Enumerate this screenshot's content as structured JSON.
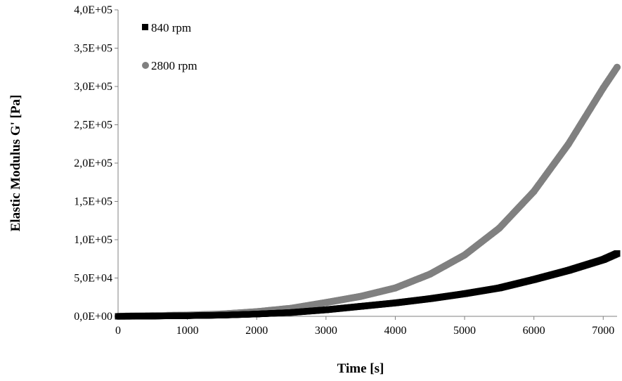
{
  "chart_data": {
    "type": "scatter",
    "xlabel": "Time [s]",
    "ylabel": "Elastic Modulus G' [Pa]",
    "xlim": [
      0,
      7200
    ],
    "ylim": [
      0,
      400000
    ],
    "x_ticks": [
      0,
      1000,
      2000,
      3000,
      4000,
      5000,
      6000,
      7000
    ],
    "x_tick_labels": [
      "0",
      "1000",
      "2000",
      "3000",
      "4000",
      "5000",
      "6000",
      "7000"
    ],
    "y_ticks": [
      0,
      50000,
      100000,
      150000,
      200000,
      250000,
      300000,
      350000,
      400000
    ],
    "y_tick_labels": [
      "0,0E+00",
      "5,0E+04",
      "1,0E+05",
      "1,5E+05",
      "2,0E+05",
      "2,5E+05",
      "3,0E+05",
      "3,5E+05",
      "4,0E+05"
    ],
    "grid": false,
    "legend_position": "top-left",
    "series": [
      {
        "name": "840 rpm",
        "marker": "square",
        "color": "#000000",
        "x": [
          0,
          500,
          1000,
          1500,
          2000,
          2500,
          3000,
          3500,
          4000,
          4500,
          5000,
          5500,
          6000,
          6500,
          7000,
          7200
        ],
        "y": [
          0,
          300,
          800,
          1500,
          3000,
          5000,
          8500,
          13000,
          17500,
          23000,
          29500,
          37000,
          48000,
          60000,
          74000,
          82000
        ]
      },
      {
        "name": "2800 rpm",
        "marker": "circle",
        "color": "#808080",
        "x": [
          0,
          500,
          1000,
          1500,
          2000,
          2500,
          3000,
          3500,
          4000,
          4500,
          5000,
          5500,
          6000,
          6500,
          7000,
          7200
        ],
        "y": [
          0,
          800,
          1500,
          3000,
          6000,
          10500,
          18000,
          26000,
          37000,
          55000,
          80000,
          115000,
          163000,
          225000,
          298000,
          325000
        ]
      }
    ]
  }
}
